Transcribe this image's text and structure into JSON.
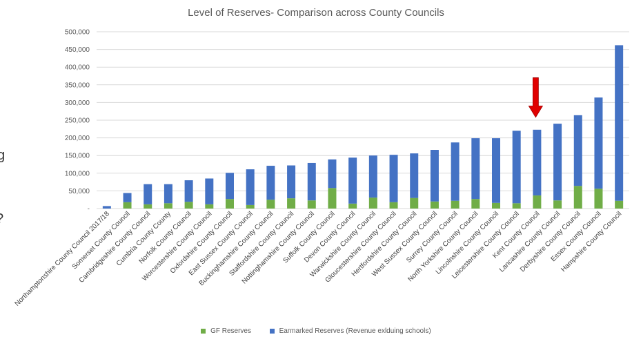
{
  "chart_data": {
    "type": "bar",
    "stacked": true,
    "title": "Level of Reserves- Comparison across County Councils",
    "xlabel": "",
    "ylabel": "",
    "ylim": [
      0,
      500000
    ],
    "yticks": [
      0,
      50000,
      100000,
      150000,
      200000,
      250000,
      300000,
      350000,
      400000,
      450000,
      500000
    ],
    "ytick_labels": [
      "-",
      "50,000",
      "100,000",
      "150,000",
      "200,000",
      "250,000",
      "300,000",
      "350,000",
      "400,000",
      "450,000",
      "500,000"
    ],
    "grid": true,
    "legend_position": "bottom",
    "categories": [
      "Northamptonshire County Council 2017/18",
      "Somerset County Council",
      "Cambridgeshire County Council",
      "Cumbria County County",
      "Norfolk County Council",
      "Worcestershire County Council",
      "Oxfordshire County Council",
      "East Sussex County Council",
      "Buckinghamshire County Council",
      "Staffordshire County Council",
      "Nottinghamshire County Council",
      "Suffolk County Council",
      "Devon County Council",
      "Warwickshire County Council",
      "Gloucestershire County Council",
      "Hertfordshire County Council",
      "West Sussex County Council",
      "Surrey County Council",
      "North Yorkshire County Council",
      "Lincolnshire County Council",
      "Leicestershire County Council",
      "Kent County Council",
      "Lancashire County Council",
      "Derbyshire County Council",
      "Essex County Council",
      "Hampshire County Council"
    ],
    "series": [
      {
        "name": "GF Reserves",
        "color": "#70ad47",
        "values": [
          0,
          18000,
          12000,
          15000,
          19000,
          12000,
          27000,
          10000,
          25000,
          29000,
          23000,
          58000,
          14000,
          31000,
          18000,
          30000,
          20000,
          22000,
          27000,
          16000,
          15000,
          37000,
          23000,
          64000,
          56000,
          22000
        ]
      },
      {
        "name": "Earmarked Reserves (Revenue exlduing schools)",
        "color": "#4472c4",
        "values": [
          7000,
          26000,
          57000,
          54000,
          61000,
          73000,
          74000,
          101000,
          96000,
          93000,
          106000,
          81000,
          130000,
          119000,
          134000,
          126000,
          146000,
          165000,
          172000,
          183000,
          205000,
          186000,
          217000,
          200000,
          258000,
          440000
        ]
      }
    ],
    "annotation": {
      "type": "arrow",
      "target_category": "Kent County Council",
      "color": "#e00000"
    }
  },
  "page_edge_marks": [
    "g",
    "?"
  ]
}
